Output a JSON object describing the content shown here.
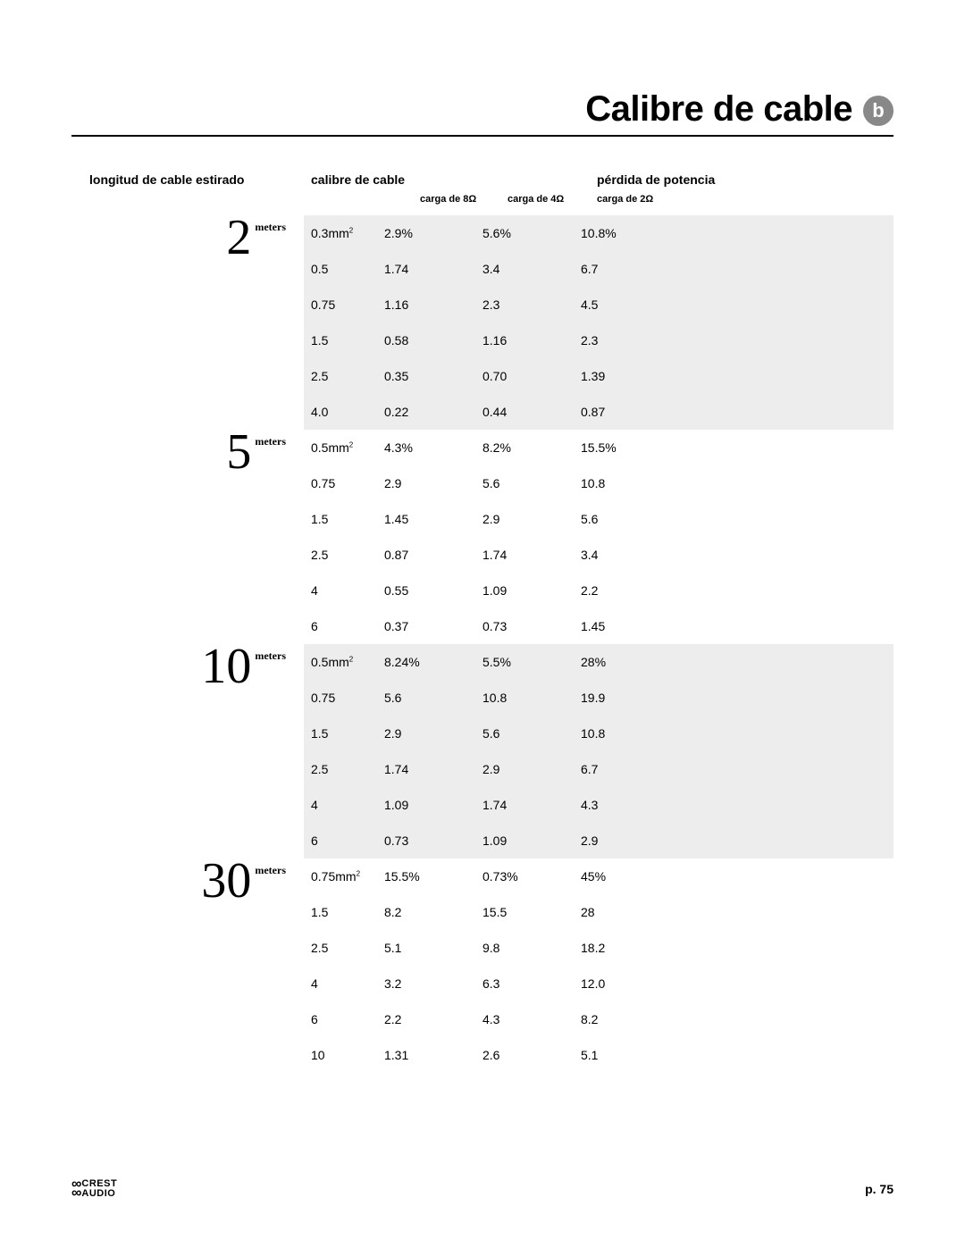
{
  "title": "Calibre de cable",
  "badge": "b",
  "headers": {
    "length": "longitud de cable estirado",
    "gauge": "calibre de cable",
    "loss": "pérdida de potencia",
    "load8": "carga de 8Ω",
    "load4": "carga de 4Ω",
    "load2": "carga de 2Ω"
  },
  "sections": [
    {
      "length_num": "2",
      "length_unit": "meters",
      "alt": true,
      "rows": [
        {
          "gauge": "0.3mm²",
          "c8": "2.9%",
          "c4": "5.6%",
          "c2": "10.8%"
        },
        {
          "gauge": "0.5",
          "c8": "1.74",
          "c4": "3.4",
          "c2": "6.7"
        },
        {
          "gauge": "0.75",
          "c8": "1.16",
          "c4": "2.3",
          "c2": "4.5"
        },
        {
          "gauge": "1.5",
          "c8": "0.58",
          "c4": "1.16",
          "c2": "2.3"
        },
        {
          "gauge": "2.5",
          "c8": "0.35",
          "c4": "0.70",
          "c2": "1.39"
        },
        {
          "gauge": "4.0",
          "c8": "0.22",
          "c4": "0.44",
          "c2": "0.87"
        }
      ]
    },
    {
      "length_num": "5",
      "length_unit": "meters",
      "alt": false,
      "rows": [
        {
          "gauge": "0.5mm²",
          "c8": "4.3%",
          "c4": "8.2%",
          "c2": "15.5%"
        },
        {
          "gauge": "0.75",
          "c8": "2.9",
          "c4": "5.6",
          "c2": "10.8"
        },
        {
          "gauge": "1.5",
          "c8": "1.45",
          "c4": "2.9",
          "c2": "5.6"
        },
        {
          "gauge": "2.5",
          "c8": "0.87",
          "c4": "1.74",
          "c2": "3.4"
        },
        {
          "gauge": "4",
          "c8": "0.55",
          "c4": "1.09",
          "c2": "2.2"
        },
        {
          "gauge": "6",
          "c8": "0.37",
          "c4": "0.73",
          "c2": "1.45"
        }
      ]
    },
    {
      "length_num": "10",
      "length_unit": "meters",
      "alt": true,
      "rows": [
        {
          "gauge": "0.5mm²",
          "c8": "8.24%",
          "c4": "5.5%",
          "c2": "28%"
        },
        {
          "gauge": "0.75",
          "c8": "5.6",
          "c4": "10.8",
          "c2": "19.9"
        },
        {
          "gauge": "1.5",
          "c8": "2.9",
          "c4": "5.6",
          "c2": "10.8"
        },
        {
          "gauge": "2.5",
          "c8": "1.74",
          "c4": "2.9",
          "c2": "6.7"
        },
        {
          "gauge": "4",
          "c8": "1.09",
          "c4": "1.74",
          "c2": "4.3"
        },
        {
          "gauge": "6",
          "c8": "0.73",
          "c4": "1.09",
          "c2": "2.9"
        }
      ]
    },
    {
      "length_num": "30",
      "length_unit": "meters",
      "alt": false,
      "rows": [
        {
          "gauge": "0.75mm²",
          "c8": "15.5%",
          "c4": "0.73%",
          "c2": "45%"
        },
        {
          "gauge": "1.5",
          "c8": "8.2",
          "c4": "15.5",
          "c2": "28"
        },
        {
          "gauge": "2.5",
          "c8": "5.1",
          "c4": "9.8",
          "c2": "18.2"
        },
        {
          "gauge": "4",
          "c8": "3.2",
          "c4": "6.3",
          "c2": "12.0"
        },
        {
          "gauge": "6",
          "c8": "2.2",
          "c4": "4.3",
          "c2": "8.2"
        },
        {
          "gauge": "10",
          "c8": "1.31",
          "c4": "2.6",
          "c2": "5.1"
        }
      ]
    }
  ],
  "footer": {
    "logo_top": "CREST",
    "logo_bottom": "AUDIO",
    "page": "p. 75"
  },
  "style": {
    "alt_bg": "#ededed",
    "badge_bg": "#888888",
    "title_fontsize": 40,
    "body_fontsize": 14
  }
}
